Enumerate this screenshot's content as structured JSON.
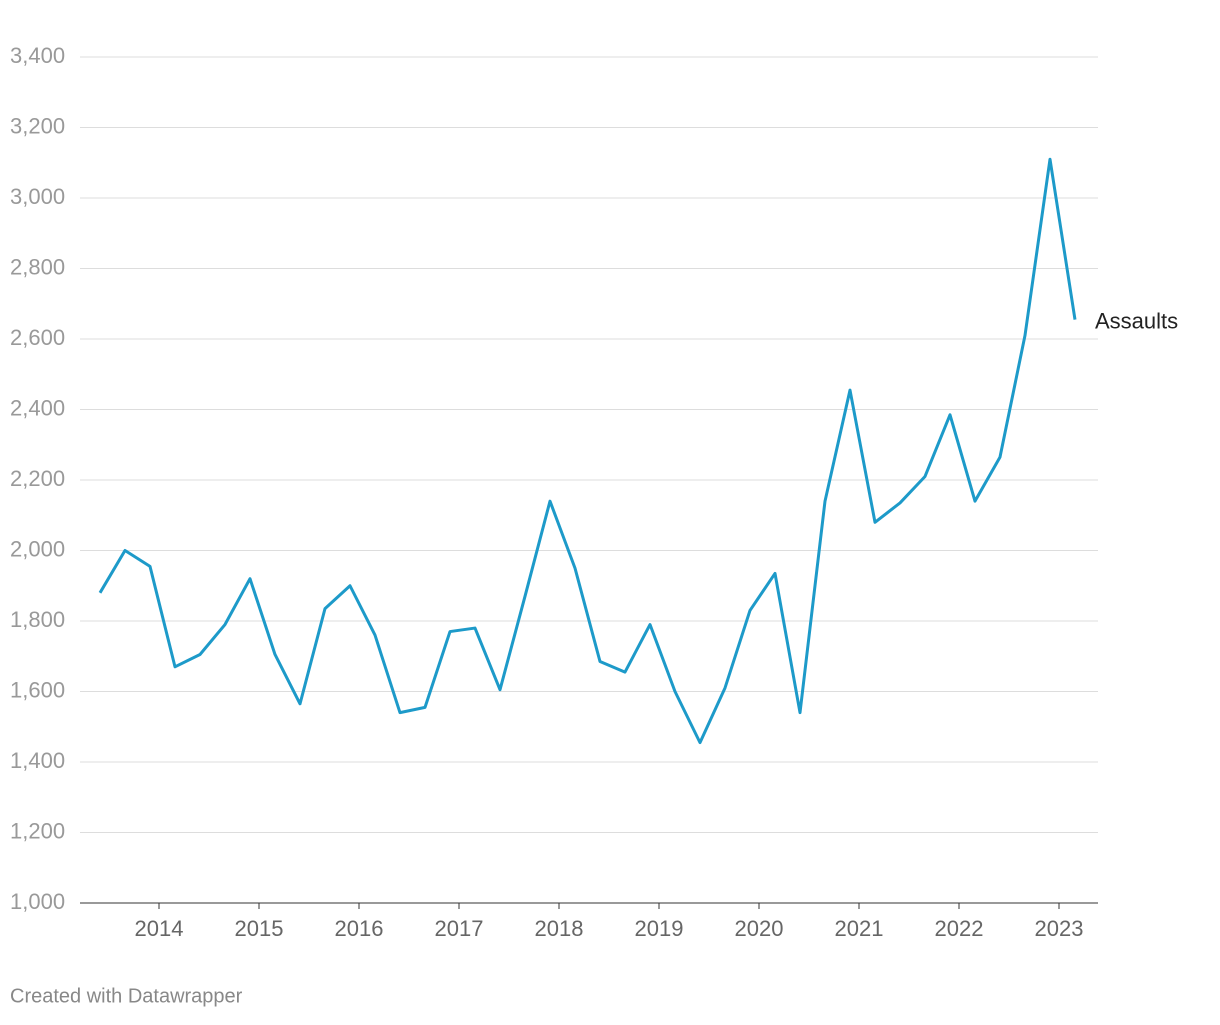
{
  "chart_data": {
    "type": "line",
    "x": [
      2013.41,
      2013.66,
      2013.91,
      2014.16,
      2014.41,
      2014.66,
      2014.91,
      2015.16,
      2015.41,
      2015.66,
      2015.91,
      2016.16,
      2016.41,
      2016.66,
      2016.91,
      2017.16,
      2017.41,
      2017.66,
      2017.91,
      2018.16,
      2018.41,
      2018.66,
      2018.91,
      2019.16,
      2019.41,
      2019.66,
      2019.91,
      2020.16,
      2020.41,
      2020.66,
      2020.91,
      2021.16,
      2021.41,
      2021.66,
      2021.91,
      2022.16,
      2022.41,
      2022.66,
      2022.91,
      2023.16
    ],
    "series": [
      {
        "name": "Assaults",
        "color": "#1d9ac9",
        "values": [
          1880,
          2000,
          1955,
          1670,
          1705,
          1790,
          1920,
          1705,
          1565,
          1835,
          1900,
          1760,
          1540,
          1555,
          1770,
          1780,
          1605,
          1870,
          2140,
          1950,
          1685,
          1655,
          1790,
          1600,
          1455,
          1610,
          1830,
          1935,
          1540,
          2140,
          2455,
          2080,
          2135,
          2210,
          2385,
          2140,
          2265,
          2610,
          3110,
          2655
        ]
      }
    ],
    "xlim": [
      2013.21,
      2023.39
    ],
    "xticks": [
      2014,
      2015,
      2016,
      2017,
      2018,
      2019,
      2020,
      2021,
      2022,
      2023
    ],
    "ylim": [
      1000,
      3400
    ],
    "yticks": [
      {
        "value": 1000,
        "label": "1,000"
      },
      {
        "value": 1200,
        "label": "1,200"
      },
      {
        "value": 1400,
        "label": "1,400"
      },
      {
        "value": 1600,
        "label": "1,600"
      },
      {
        "value": 1800,
        "label": "1,800"
      },
      {
        "value": 2000,
        "label": "2,000"
      },
      {
        "value": 2200,
        "label": "2,200"
      },
      {
        "value": 2400,
        "label": "2,400"
      },
      {
        "value": 2600,
        "label": "2,600"
      },
      {
        "value": 2800,
        "label": "2,800"
      },
      {
        "value": 3000,
        "label": "3,000"
      },
      {
        "value": 3200,
        "label": "3,200"
      },
      {
        "value": 3400,
        "label": "3,400"
      }
    ],
    "grid": true,
    "footer": "Created with Datawrapper"
  }
}
